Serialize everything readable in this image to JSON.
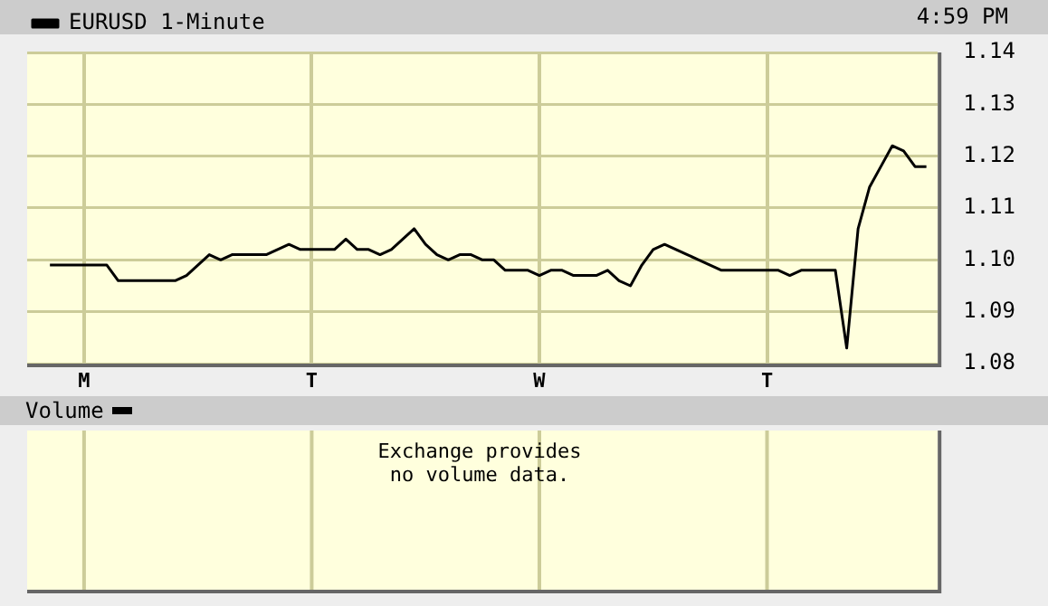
{
  "chart_data": [
    {
      "type": "line",
      "annotations": [
        "4:59 PM"
      ],
      "legend": "top left",
      "grid": true,
      "categories": [
        null,
        null,
        null,
        null,
        null,
        "M",
        null,
        null,
        null,
        null,
        null,
        null,
        null,
        null,
        null,
        null,
        null,
        null,
        null,
        null,
        null,
        null,
        null,
        null,
        null,
        "T",
        null,
        null,
        null,
        null,
        null,
        null,
        null,
        null,
        null,
        null,
        null,
        null,
        null,
        null,
        null,
        null,
        null,
        null,
        null,
        "W",
        null,
        null,
        null,
        null,
        null,
        null,
        null,
        null,
        null,
        null,
        null,
        null,
        null,
        null,
        null,
        null,
        null,
        null,
        null,
        "T",
        null,
        null,
        null,
        null,
        null,
        null,
        null,
        null,
        null,
        null,
        null,
        null,
        null,
        null,
        null
      ],
      "ylim": [
        1.08,
        1.14
      ],
      "yticks": [
        1.08,
        1.09,
        {
          "value": 1.1,
          "label": "1.10"
        },
        1.11,
        1.12,
        1.13,
        1.14
      ],
      "series": [
        {
          "name": "EURUSD 1-Minute",
          "color": "#000000",
          "values": [
            null,
            null,
            1.099,
            1.099,
            1.099,
            1.099,
            1.099,
            1.099,
            1.096,
            1.096,
            1.096,
            1.096,
            1.096,
            1.096,
            1.097,
            1.099,
            1.101,
            1.1,
            1.101,
            1.101,
            1.101,
            1.101,
            1.102,
            1.103,
            1.102,
            1.102,
            1.102,
            1.102,
            1.104,
            1.102,
            1.102,
            1.101,
            1.102,
            1.104,
            1.106,
            1.103,
            1.101,
            1.1,
            1.101,
            1.101,
            1.1,
            1.1,
            1.098,
            1.098,
            1.098,
            1.097,
            1.098,
            1.098,
            1.097,
            1.097,
            1.097,
            1.098,
            1.096,
            1.095,
            1.099,
            1.102,
            1.103,
            1.102,
            1.101,
            1.1,
            1.099,
            1.098,
            1.098,
            1.098,
            1.098,
            1.098,
            1.098,
            1.097,
            1.098,
            1.098,
            1.098,
            1.098,
            1.083,
            1.106,
            1.114,
            1.118,
            1.122,
            1.121,
            1.118,
            1.118,
            null
          ]
        }
      ]
    },
    {
      "type": "other",
      "title": "Volume",
      "annotations": [
        "Exchange provides no volume data."
      ]
    }
  ]
}
